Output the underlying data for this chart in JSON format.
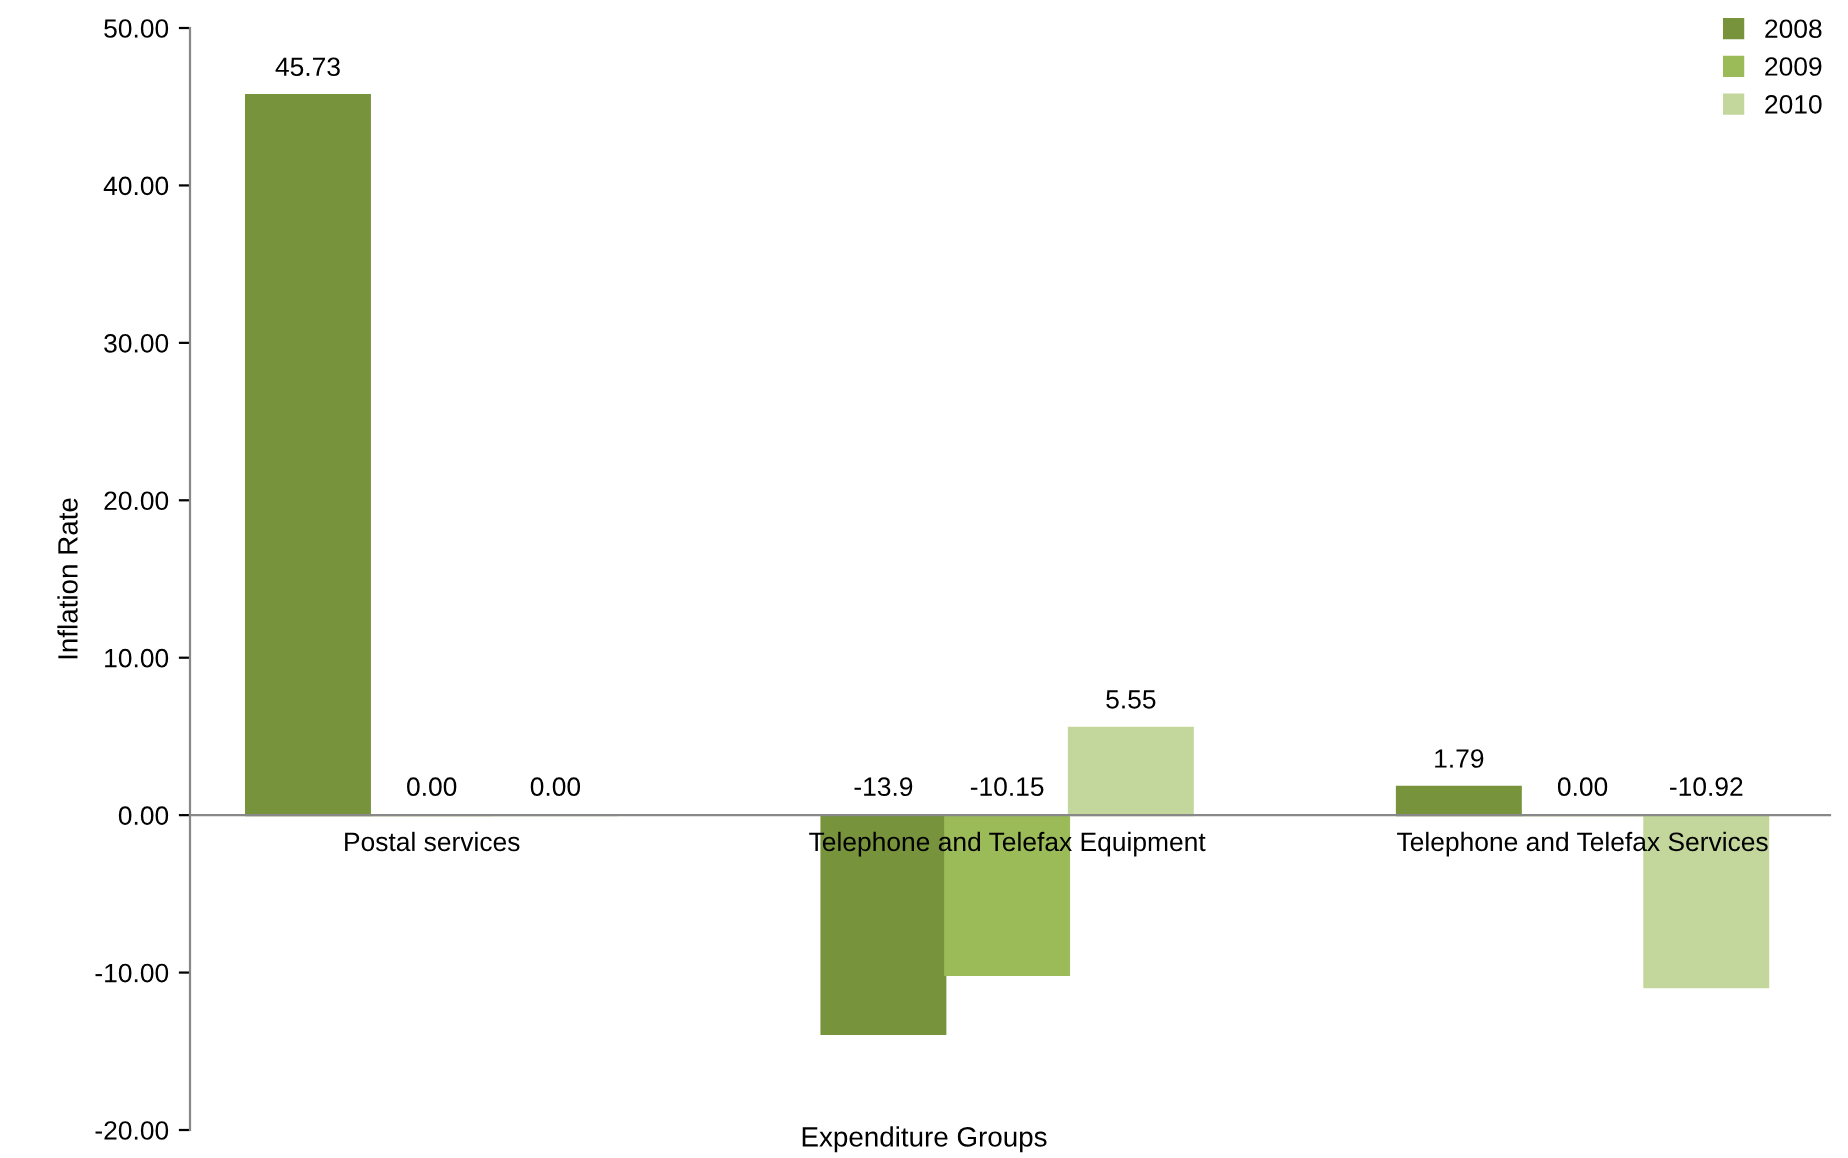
{
  "chart_data": {
    "type": "bar",
    "categories": [
      "Postal services",
      "Telephone and Telefax Equipment",
      "Telephone and Telefax Services"
    ],
    "series": [
      {
        "name": "2008",
        "color": "#77933c",
        "values": [
          45.73,
          -13.9,
          1.79
        ],
        "value_labels": [
          "45.73",
          "-13.9",
          "1.79"
        ]
      },
      {
        "name": "2009",
        "color": "#9bbb59",
        "values": [
          0.0,
          -10.15,
          0.0
        ],
        "value_labels": [
          "0.00",
          "-10.15",
          "0.00"
        ]
      },
      {
        "name": "2010",
        "color": "#c3d69b",
        "values": [
          0.0,
          5.55,
          -10.92
        ],
        "value_labels": [
          "0.00",
          "5.55",
          "-10.92"
        ]
      }
    ],
    "xlabel": "Expenditure Groups",
    "ylabel": "Inflation Rate",
    "ylim": [
      -20,
      50
    ],
    "yticks": [
      {
        "value": -20,
        "label": "-20.00"
      },
      {
        "value": -10,
        "label": "-10.00"
      },
      {
        "value": 0,
        "label": "0.00"
      },
      {
        "value": 10,
        "label": "10.00"
      },
      {
        "value": 20,
        "label": "20.00"
      },
      {
        "value": 30,
        "label": "30.00"
      },
      {
        "value": 40,
        "label": "40.00"
      },
      {
        "value": 50,
        "label": "50.00"
      }
    ],
    "grid": false,
    "legend": "top right"
  }
}
